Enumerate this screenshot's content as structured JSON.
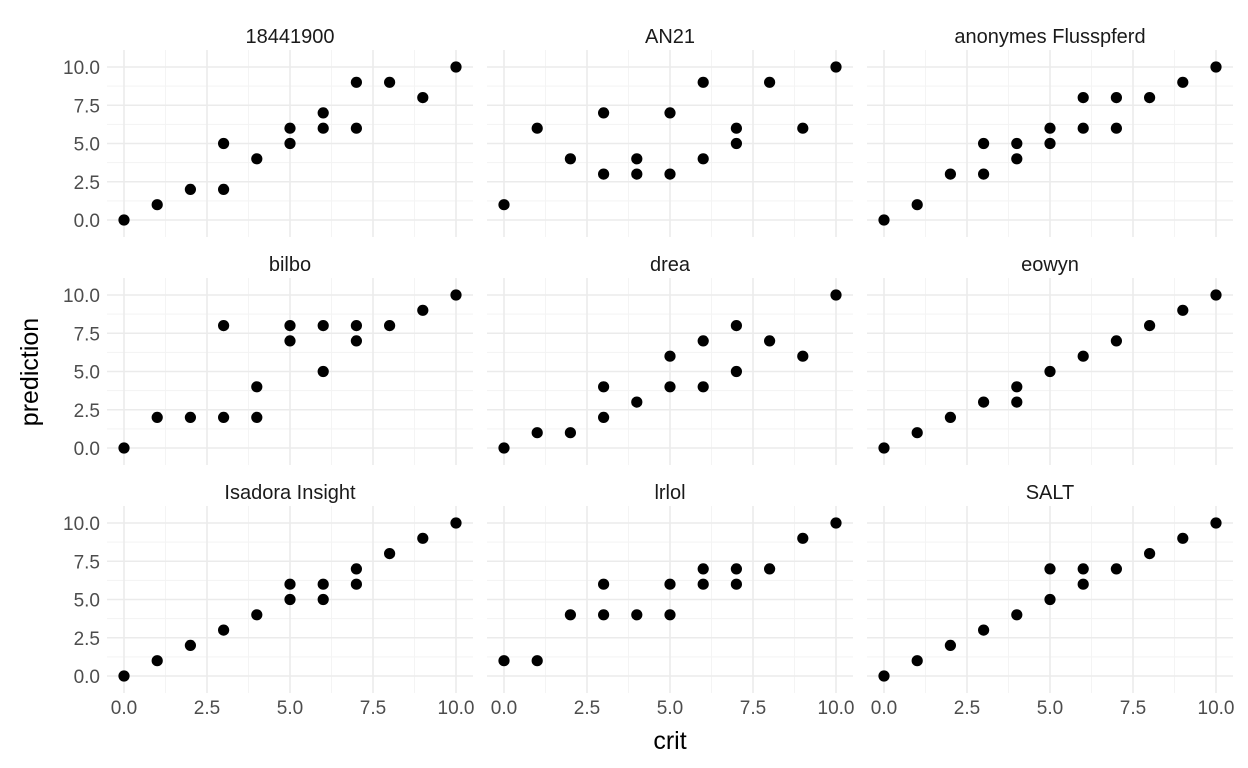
{
  "chart_data": {
    "type": "scatter",
    "layout": "facet-wrap 3x3",
    "xlabel": "crit",
    "ylabel": "prediction",
    "xlim": [
      0,
      10
    ],
    "ylim": [
      0,
      10
    ],
    "x_ticks": [
      "0.0",
      "2.5",
      "5.0",
      "7.5",
      "10.0"
    ],
    "y_ticks": [
      "0.0",
      "2.5",
      "5.0",
      "7.5",
      "10.0"
    ],
    "grid": true,
    "point_color": "#000000",
    "panels": [
      {
        "title": "18441900",
        "x": [
          0,
          1,
          2,
          3,
          3,
          4,
          5,
          5,
          6,
          6,
          7,
          7,
          8,
          9,
          10
        ],
        "y": [
          0,
          1,
          2,
          2,
          5,
          4,
          6,
          5,
          7,
          6,
          9,
          6,
          9,
          8,
          10
        ]
      },
      {
        "title": "AN21",
        "x": [
          0,
          1,
          2,
          3,
          3,
          4,
          4,
          5,
          5,
          6,
          6,
          7,
          7,
          8,
          9,
          10
        ],
        "y": [
          1,
          6,
          4,
          7,
          3,
          4,
          3,
          7,
          3,
          9,
          4,
          6,
          5,
          9,
          6,
          10
        ]
      },
      {
        "title": "anonymes Flusspferd",
        "x": [
          0,
          1,
          2,
          3,
          3,
          4,
          4,
          5,
          5,
          6,
          6,
          7,
          7,
          8,
          9,
          10
        ],
        "y": [
          0,
          1,
          3,
          5,
          3,
          5,
          4,
          6,
          5,
          8,
          6,
          8,
          6,
          8,
          9,
          10
        ]
      },
      {
        "title": "bilbo",
        "x": [
          0,
          1,
          2,
          3,
          3,
          4,
          4,
          5,
          5,
          6,
          6,
          7,
          7,
          8,
          9,
          10
        ],
        "y": [
          0,
          2,
          2,
          8,
          2,
          4,
          2,
          8,
          7,
          8,
          5,
          8,
          7,
          8,
          9,
          10
        ]
      },
      {
        "title": "drea",
        "x": [
          0,
          1,
          2,
          3,
          3,
          4,
          5,
          5,
          6,
          6,
          7,
          7,
          8,
          9,
          10
        ],
        "y": [
          0,
          1,
          1,
          4,
          2,
          3,
          6,
          4,
          7,
          4,
          8,
          5,
          7,
          6,
          10
        ]
      },
      {
        "title": "eowyn",
        "x": [
          0,
          1,
          2,
          3,
          4,
          4,
          5,
          6,
          7,
          8,
          9,
          10
        ],
        "y": [
          0,
          1,
          2,
          3,
          4,
          3,
          5,
          6,
          7,
          8,
          9,
          10
        ]
      },
      {
        "title": "Isadora Insight",
        "x": [
          0,
          1,
          2,
          3,
          4,
          5,
          5,
          6,
          6,
          7,
          7,
          8,
          9,
          10
        ],
        "y": [
          0,
          1,
          2,
          3,
          4,
          6,
          5,
          6,
          5,
          7,
          6,
          8,
          9,
          10
        ]
      },
      {
        "title": "lrlol",
        "x": [
          0,
          1,
          2,
          3,
          3,
          4,
          5,
          5,
          6,
          6,
          7,
          7,
          8,
          9,
          10
        ],
        "y": [
          1,
          1,
          4,
          6,
          4,
          4,
          6,
          4,
          7,
          6,
          7,
          6,
          7,
          9,
          10
        ]
      },
      {
        "title": "SALT",
        "x": [
          0,
          1,
          2,
          3,
          4,
          5,
          5,
          6,
          6,
          7,
          8,
          9,
          10
        ],
        "y": [
          0,
          1,
          2,
          3,
          4,
          7,
          5,
          7,
          6,
          7,
          8,
          9,
          10
        ]
      }
    ]
  }
}
